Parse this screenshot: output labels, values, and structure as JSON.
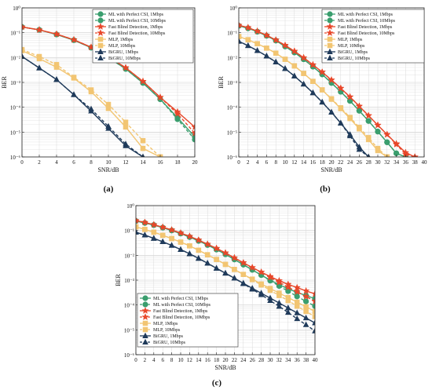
{
  "figure": {
    "series_styles": [
      {
        "color": "#3a9e6e",
        "marker": "circle",
        "dash": false
      },
      {
        "color": "#3a9e6e",
        "marker": "circle",
        "dash": true
      },
      {
        "color": "#e8472a",
        "marker": "star",
        "dash": false
      },
      {
        "color": "#e8472a",
        "marker": "star",
        "dash": true
      },
      {
        "color": "#f2c572",
        "marker": "square",
        "dash": false
      },
      {
        "color": "#f2c572",
        "marker": "square",
        "dash": true
      },
      {
        "color": "#1f3a5a",
        "marker": "triangle",
        "dash": false
      },
      {
        "color": "#1f3a5a",
        "marker": "triangle",
        "dash": true
      }
    ]
  },
  "chart_data": [
    {
      "type": "line",
      "panel_label": "(a)",
      "xlabel": "SNR/dB",
      "ylabel": "BER",
      "xlim": [
        0,
        20
      ],
      "ylim_exponent": [
        -6,
        0
      ],
      "yscale": "log",
      "grid": true,
      "legend_position": "top-right",
      "x_ticks": [
        "0",
        "2",
        "4",
        "6",
        "8",
        "10",
        "12",
        "14",
        "16",
        "18",
        "20"
      ],
      "y_ticks": [
        "10⁻⁶",
        "10⁻⁵",
        "10⁻⁴",
        "10⁻³",
        "10⁻²",
        "10⁻¹",
        "10⁰"
      ],
      "x": [
        0,
        2,
        4,
        6,
        8,
        10,
        12,
        14,
        16,
        18,
        20
      ],
      "series": [
        {
          "name": "ML with Perfect CSI, 1Mbps",
          "values": [
            0.17,
            0.13,
            0.085,
            0.05,
            0.025,
            0.01,
            0.0035,
            0.00095,
            0.00021,
            3.8e-05,
            6.5e-06
          ]
        },
        {
          "name": "ML with Perfect CSI, 10Mbps",
          "values": [
            0.17,
            0.13,
            0.085,
            0.05,
            0.025,
            0.01,
            0.0035,
            0.00095,
            0.00021,
            3.3e-05,
            5e-06
          ]
        },
        {
          "name": "Fast Blind Detection, 1Mbps",
          "values": [
            0.17,
            0.13,
            0.088,
            0.052,
            0.026,
            0.0108,
            0.0039,
            0.0011,
            0.00025,
            6.5e-05,
            1.6e-05
          ]
        },
        {
          "name": "Fast Blind Detection, 10Mbps",
          "values": [
            0.17,
            0.13,
            0.088,
            0.052,
            0.026,
            0.0108,
            0.0039,
            0.0011,
            0.00025,
            5.5e-05,
            9e-06
          ]
        },
        {
          "name": "MLP, 1Mbps",
          "values": [
            0.019,
            0.009,
            0.0041,
            0.0015,
            0.00042,
            9e-05,
            1.6e-05,
            2.2e-06,
            1e-06,
            null,
            null
          ]
        },
        {
          "name": "MLP, 10Mbps",
          "values": [
            0.021,
            0.011,
            0.0052,
            0.0016,
            0.0005,
            0.00013,
            2.5e-05,
            4.5e-06,
            1e-06,
            null,
            null
          ]
        },
        {
          "name": "BiGRU, 1Mbps",
          "values": [
            0.011,
            0.0038,
            0.0013,
            0.00032,
            7e-05,
            1.4e-05,
            2.8e-06,
            1e-06,
            null,
            null,
            null
          ]
        },
        {
          "name": "BiGRU, 10Mbps",
          "values": [
            0.011,
            0.0038,
            0.0013,
            0.00032,
            8.5e-05,
            1.7e-05,
            3.3e-06,
            1e-06,
            null,
            null,
            null
          ]
        }
      ]
    },
    {
      "type": "line",
      "panel_label": "(b)",
      "xlabel": "SNR/dB",
      "ylabel": "BER",
      "xlim": [
        0,
        40
      ],
      "ylim_exponent": [
        -6,
        0
      ],
      "yscale": "log",
      "grid": true,
      "legend_position": "top-right",
      "x_ticks": [
        "0",
        "2",
        "4",
        "6",
        "8",
        "10",
        "12",
        "14",
        "16",
        "18",
        "20",
        "22",
        "24",
        "26",
        "28",
        "30",
        "32",
        "34",
        "36",
        "38",
        "40"
      ],
      "y_ticks": [
        "10⁻⁶",
        "10⁻⁵",
        "10⁻⁴",
        "10⁻³",
        "10⁻²",
        "10⁻¹",
        "10⁰"
      ],
      "x": [
        0,
        2,
        4,
        6,
        8,
        10,
        12,
        14,
        16,
        18,
        20,
        22,
        24,
        26,
        28,
        30,
        32,
        34,
        36,
        38,
        40
      ],
      "series": [
        {
          "name": "ML with Perfect CSI, 1Mbps",
          "values": [
            0.19,
            0.15,
            0.11,
            0.075,
            0.048,
            0.028,
            0.016,
            0.0085,
            0.0043,
            0.0021,
            0.00095,
            0.00042,
            0.00018,
            7.2e-05,
            2.8e-05,
            1.05e-05,
            3.9e-06,
            1.4e-06,
            1e-06,
            null,
            null
          ]
        },
        {
          "name": "ML with Perfect CSI, 10Mbps",
          "values": [
            0.19,
            0.15,
            0.11,
            0.075,
            0.048,
            0.028,
            0.016,
            0.0085,
            0.0043,
            0.0021,
            0.00095,
            0.00042,
            0.00018,
            7.2e-05,
            2.8e-05,
            1.05e-05,
            3.9e-06,
            1.4e-06,
            1e-06,
            null,
            null
          ]
        },
        {
          "name": "Fast Blind Detection, 1Mbps",
          "values": [
            0.2,
            0.16,
            0.115,
            0.079,
            0.051,
            0.031,
            0.018,
            0.0098,
            0.0051,
            0.0026,
            0.00125,
            0.00058,
            0.00026,
            0.00011,
            4.6e-05,
            1.9e-05,
            8e-06,
            3.4e-06,
            1.5e-06,
            1e-06,
            null
          ]
        },
        {
          "name": "Fast Blind Detection, 10Mbps",
          "values": [
            0.2,
            0.16,
            0.115,
            0.079,
            0.051,
            0.031,
            0.018,
            0.0098,
            0.0051,
            0.0026,
            0.00125,
            0.00058,
            0.00026,
            0.00011,
            4.6e-05,
            1.9e-05,
            8e-06,
            3.2e-06,
            1.3e-06,
            1e-06,
            null
          ]
        },
        {
          "name": "MLP, 1Mbps",
          "values": [
            0.07,
            0.052,
            0.036,
            0.024,
            0.015,
            0.0085,
            0.0046,
            0.0023,
            0.0011,
            0.0005,
            0.00021,
            8.8e-05,
            3.5e-05,
            1.35e-05,
            5e-06,
            1.8e-06,
            1e-06,
            null,
            null,
            null,
            null
          ]
        },
        {
          "name": "MLP, 10Mbps",
          "values": [
            0.07,
            0.052,
            0.036,
            0.024,
            0.015,
            0.0085,
            0.0046,
            0.0023,
            0.0011,
            0.0005,
            0.00022,
            9.5e-05,
            3.9e-05,
            1.55e-05,
            6e-06,
            2.2e-06,
            1e-06,
            null,
            null,
            null,
            null
          ]
        },
        {
          "name": "BiGRU, 1Mbps",
          "values": [
            0.045,
            0.03,
            0.019,
            0.0115,
            0.0066,
            0.0036,
            0.0018,
            0.00085,
            0.00038,
            0.00016,
            6.3e-05,
            2.3e-05,
            8e-06,
            2.5e-06,
            1e-06,
            null,
            null,
            null,
            null,
            null,
            null
          ]
        },
        {
          "name": "BiGRU, 10Mbps",
          "values": [
            0.045,
            0.03,
            0.019,
            0.0115,
            0.0066,
            0.0036,
            0.0018,
            0.00085,
            0.00038,
            0.00016,
            6.3e-05,
            2.3e-05,
            7e-06,
            2e-06,
            1e-06,
            null,
            null,
            null,
            null,
            null,
            null
          ]
        }
      ]
    },
    {
      "type": "line",
      "panel_label": "(c)",
      "xlabel": "SNR/dB",
      "ylabel": "BER",
      "xlim": [
        0,
        40
      ],
      "ylim_exponent": [
        -6,
        0
      ],
      "yscale": "log",
      "grid": true,
      "legend_position": "bottom-left",
      "x_ticks": [
        "0",
        "2",
        "4",
        "6",
        "8",
        "10",
        "12",
        "14",
        "16",
        "18",
        "20",
        "22",
        "24",
        "26",
        "28",
        "30",
        "32",
        "34",
        "36",
        "38",
        "40"
      ],
      "y_ticks": [
        "10⁻⁶",
        "10⁻⁵",
        "10⁻⁴",
        "10⁻³",
        "10⁻²",
        "10⁻¹",
        "10⁰"
      ],
      "x": [
        0,
        2,
        4,
        6,
        8,
        10,
        12,
        14,
        16,
        18,
        20,
        22,
        24,
        26,
        28,
        30,
        32,
        34,
        36,
        38,
        40
      ],
      "series": [
        {
          "name": "ML with Perfect CSI, 1Mbps",
          "values": [
            0.24,
            0.2,
            0.165,
            0.13,
            0.1,
            0.075,
            0.054,
            0.038,
            0.026,
            0.017,
            0.011,
            0.0068,
            0.0042,
            0.0026,
            0.0016,
            0.001,
            0.00066,
            0.00045,
            0.00032,
            0.00024,
            0.00018
          ]
        },
        {
          "name": "ML with Perfect CSI, 10Mbps",
          "values": [
            0.24,
            0.2,
            0.165,
            0.13,
            0.1,
            0.075,
            0.054,
            0.038,
            0.026,
            0.017,
            0.011,
            0.0068,
            0.0042,
            0.0026,
            0.0016,
            0.00095,
            0.00058,
            0.00036,
            0.00022,
            0.00014,
            9e-05
          ]
        },
        {
          "name": "Fast Blind Detection, 1Mbps",
          "values": [
            0.25,
            0.21,
            0.17,
            0.135,
            0.105,
            0.079,
            0.058,
            0.041,
            0.028,
            0.019,
            0.0125,
            0.0079,
            0.005,
            0.0032,
            0.0021,
            0.0014,
            0.00095,
            0.00068,
            0.0005,
            0.00037,
            0.00028
          ]
        },
        {
          "name": "Fast Blind Detection, 10Mbps",
          "values": [
            0.25,
            0.21,
            0.17,
            0.135,
            0.105,
            0.079,
            0.058,
            0.041,
            0.028,
            0.019,
            0.0125,
            0.0079,
            0.005,
            0.0032,
            0.0021,
            0.0013,
            0.00082,
            0.00052,
            0.00034,
            0.00022,
            0.00014
          ]
        },
        {
          "name": "MLP, 1Mbps",
          "values": [
            0.14,
            0.11,
            0.085,
            0.064,
            0.047,
            0.034,
            0.024,
            0.016,
            0.0105,
            0.0068,
            0.0043,
            0.0027,
            0.0017,
            0.0011,
            0.0007,
            0.00046,
            0.0003,
            0.0002,
            0.00013,
            8.5e-05,
            5.5e-05
          ]
        },
        {
          "name": "MLP, 10Mbps",
          "values": [
            0.14,
            0.11,
            0.085,
            0.064,
            0.047,
            0.034,
            0.024,
            0.016,
            0.0105,
            0.0068,
            0.0043,
            0.0027,
            0.0017,
            0.00105,
            0.00064,
            0.00039,
            0.00024,
            0.00015,
            9e-05,
            5.5e-05,
            3.4e-05
          ]
        },
        {
          "name": "BiGRU, 1Mbps",
          "values": [
            0.085,
            0.065,
            0.048,
            0.035,
            0.025,
            0.017,
            0.0115,
            0.0075,
            0.0048,
            0.003,
            0.0019,
            0.0012,
            0.00075,
            0.00047,
            0.0003,
            0.00019,
            0.00012,
            7.6e-05,
            4.8e-05,
            3e-05,
            1.9e-05
          ]
        },
        {
          "name": "BiGRU, 10Mbps",
          "values": [
            0.085,
            0.065,
            0.048,
            0.035,
            0.025,
            0.017,
            0.0115,
            0.0075,
            0.0048,
            0.003,
            0.0019,
            0.0012,
            0.00072,
            0.00043,
            0.00026,
            0.00015,
            8.8e-05,
            5e-05,
            2.8e-05,
            1.6e-05,
            9e-06
          ]
        }
      ]
    }
  ]
}
